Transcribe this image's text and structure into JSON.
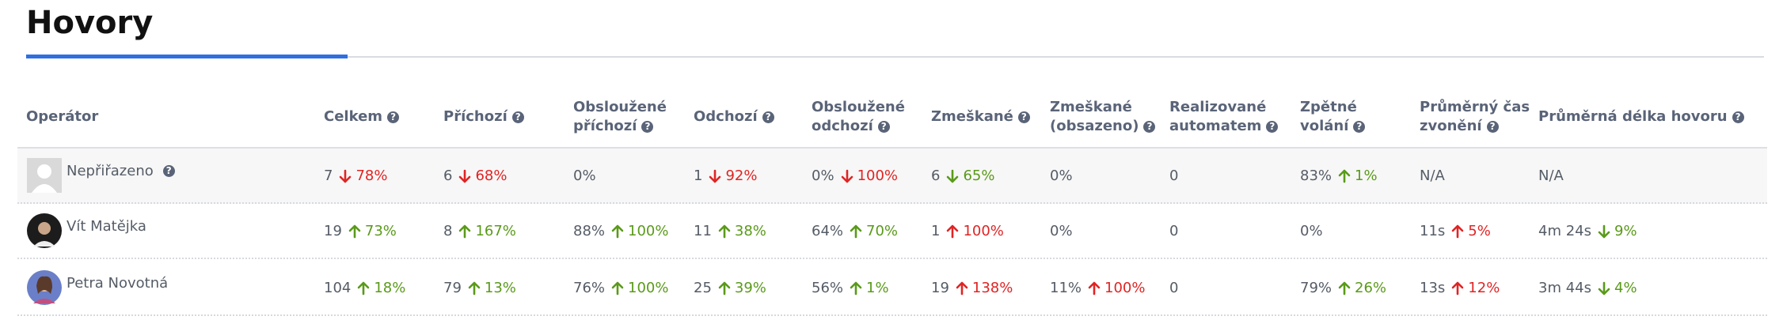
{
  "header": {
    "title": "Hovory"
  },
  "table": {
    "columns": [
      {
        "label": [
          "Operátor"
        ],
        "help": false
      },
      {
        "label": [
          "Celkem"
        ],
        "help": true
      },
      {
        "label": [
          "Příchozí"
        ],
        "help": true
      },
      {
        "label": [
          "Obsloužené",
          "příchozí"
        ],
        "help": true
      },
      {
        "label": [
          "Odchozí"
        ],
        "help": true
      },
      {
        "label": [
          "Obsloužené",
          "odchozí"
        ],
        "help": true
      },
      {
        "label": [
          "Zmeškané"
        ],
        "help": true
      },
      {
        "label": [
          "Zmeškané",
          "(obsazeno)"
        ],
        "help": true
      },
      {
        "label": [
          "Realizované",
          "automatem"
        ],
        "help": true
      },
      {
        "label": [
          "Zpětné",
          "volání"
        ],
        "help": true
      },
      {
        "label": [
          "Průměrný čas",
          "zvonění"
        ],
        "help": true
      },
      {
        "label": [
          "Průměrná délka hovoru"
        ],
        "help": true
      }
    ],
    "rows": [
      {
        "name": "Nepřiřazeno",
        "help": true,
        "avatar": "placeholder",
        "cells": [
          {
            "value": "7",
            "change": "78%",
            "arrow": "down",
            "color": "#e02424"
          },
          {
            "value": "6",
            "change": "68%",
            "arrow": "down",
            "color": "#e02424"
          },
          {
            "value": "0%"
          },
          {
            "value": "1",
            "change": "92%",
            "arrow": "down",
            "color": "#e02424"
          },
          {
            "value": "0%",
            "change": "100%",
            "arrow": "down",
            "color": "#e02424"
          },
          {
            "value": "6",
            "change": "65%",
            "arrow": "down",
            "color": "#5a9a1a"
          },
          {
            "value": "0%"
          },
          {
            "value": "0"
          },
          {
            "value": "83%",
            "change": "1%",
            "arrow": "up",
            "color": "#5a9a1a"
          },
          {
            "value": "N/A"
          },
          {
            "value": "N/A"
          }
        ]
      },
      {
        "name": "Vít Matějka",
        "help": false,
        "avatar": "dark",
        "cells": [
          {
            "value": "19",
            "change": "73%",
            "arrow": "up",
            "color": "#5a9a1a"
          },
          {
            "value": "8",
            "change": "167%",
            "arrow": "up",
            "color": "#5a9a1a"
          },
          {
            "value": "88%",
            "change": "100%",
            "arrow": "up",
            "color": "#5a9a1a"
          },
          {
            "value": "11",
            "change": "38%",
            "arrow": "up",
            "color": "#5a9a1a"
          },
          {
            "value": "64%",
            "change": "70%",
            "arrow": "up",
            "color": "#5a9a1a"
          },
          {
            "value": "1",
            "change": "100%",
            "arrow": "up",
            "color": "#e02424"
          },
          {
            "value": "0%"
          },
          {
            "value": "0"
          },
          {
            "value": "0%"
          },
          {
            "value": "11s",
            "change": "5%",
            "arrow": "up",
            "color": "#e02424"
          },
          {
            "value": "4m 24s",
            "change": "9%",
            "arrow": "down",
            "color": "#5a9a1a"
          }
        ]
      },
      {
        "name": "Petra Novotná",
        "help": false,
        "avatar": "photo",
        "cells": [
          {
            "value": "104",
            "change": "18%",
            "arrow": "up",
            "color": "#5a9a1a"
          },
          {
            "value": "79",
            "change": "13%",
            "arrow": "up",
            "color": "#5a9a1a"
          },
          {
            "value": "76%",
            "change": "100%",
            "arrow": "up",
            "color": "#5a9a1a"
          },
          {
            "value": "25",
            "change": "39%",
            "arrow": "up",
            "color": "#5a9a1a"
          },
          {
            "value": "56%",
            "change": "1%",
            "arrow": "up",
            "color": "#5a9a1a"
          },
          {
            "value": "19",
            "change": "138%",
            "arrow": "up",
            "color": "#e02424"
          },
          {
            "value": "11%",
            "change": "100%",
            "arrow": "up",
            "color": "#e02424"
          },
          {
            "value": "0"
          },
          {
            "value": "79%",
            "change": "26%",
            "arrow": "up",
            "color": "#5a9a1a"
          },
          {
            "value": "13s",
            "change": "12%",
            "arrow": "up",
            "color": "#e02424"
          },
          {
            "value": "3m 44s",
            "change": "4%",
            "arrow": "down",
            "color": "#5a9a1a"
          }
        ]
      }
    ]
  }
}
